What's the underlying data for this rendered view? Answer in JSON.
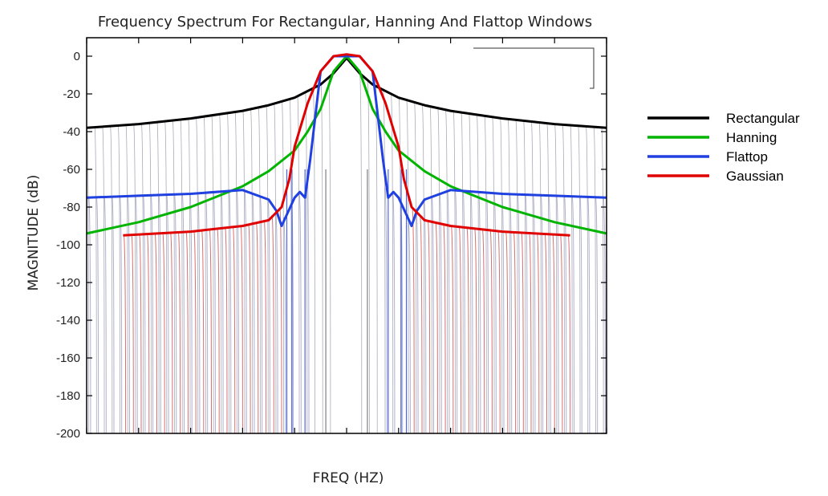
{
  "chart_data": {
    "type": "line",
    "title": "Frequency Spectrum For Rectangular, Hanning And Flattop Windows",
    "xlabel": "FREQ (HZ)",
    "ylabel": "MAGNITUDE (dB)",
    "ylim": [
      -200,
      0
    ],
    "xlim": [
      -1,
      1
    ],
    "yticks": [
      "0",
      "-20",
      "-40",
      "-60",
      "-80",
      "-100",
      "-120",
      "-140",
      "-160",
      "-180",
      "-200"
    ],
    "grid": false,
    "legend_position": "right",
    "series": [
      {
        "name": "Rectangular",
        "color": "#000000",
        "x": [
          -1.0,
          -0.8,
          -0.6,
          -0.4,
          -0.3,
          -0.2,
          -0.1,
          -0.05,
          0.0,
          0.05,
          0.1,
          0.2,
          0.3,
          0.4,
          0.6,
          0.8,
          1.0
        ],
        "y": [
          -38,
          -36,
          -33,
          -29,
          -26,
          -22,
          -15,
          -9,
          -1,
          -9,
          -15,
          -22,
          -26,
          -29,
          -33,
          -36,
          -38
        ]
      },
      {
        "name": "Hanning",
        "color": "#00b400",
        "x": [
          -1.0,
          -0.8,
          -0.6,
          -0.4,
          -0.3,
          -0.2,
          -0.15,
          -0.1,
          -0.05,
          0.0,
          0.05,
          0.1,
          0.15,
          0.2,
          0.3,
          0.4,
          0.6,
          0.8,
          1.0
        ],
        "y": [
          -94,
          -88,
          -80,
          -69,
          -61,
          -50,
          -40,
          -28,
          -8,
          0,
          -8,
          -28,
          -40,
          -50,
          -61,
          -69,
          -80,
          -88,
          -94
        ]
      },
      {
        "name": "Flattop",
        "color": "#2040e0",
        "x": [
          -1.0,
          -0.8,
          -0.6,
          -0.4,
          -0.3,
          -0.27,
          -0.25,
          -0.2,
          -0.18,
          -0.16,
          -0.14,
          -0.1,
          -0.05,
          0.0,
          0.05,
          0.1,
          0.14,
          0.16,
          0.18,
          0.2,
          0.25,
          0.27,
          0.3,
          0.4,
          0.6,
          0.8,
          1.0
        ],
        "y": [
          -75,
          -74,
          -73,
          -71,
          -76,
          -82,
          -90,
          -75,
          -72,
          -75,
          -55,
          -8,
          0,
          0,
          0,
          -8,
          -55,
          -75,
          -72,
          -75,
          -90,
          -82,
          -76,
          -71,
          -73,
          -74,
          -75
        ]
      },
      {
        "name": "Gaussian",
        "color": "#e00000",
        "x": [
          -0.86,
          -0.6,
          -0.4,
          -0.3,
          -0.25,
          -0.22,
          -0.2,
          -0.15,
          -0.1,
          -0.05,
          0.0,
          0.05,
          0.1,
          0.15,
          0.2,
          0.22,
          0.25,
          0.3,
          0.4,
          0.6,
          0.86
        ],
        "y": [
          -95,
          -93,
          -90,
          -87,
          -80,
          -65,
          -48,
          -25,
          -8,
          0,
          1,
          0,
          -8,
          -25,
          -48,
          -65,
          -80,
          -87,
          -90,
          -93,
          -95
        ]
      }
    ]
  },
  "legend": {
    "items": [
      {
        "label": "Rectangular",
        "color": "#000000"
      },
      {
        "label": "Hanning",
        "color": "#00b400"
      },
      {
        "label": "Flattop",
        "color": "#2040e0"
      },
      {
        "label": "Gaussian",
        "color": "#e00000"
      }
    ]
  }
}
